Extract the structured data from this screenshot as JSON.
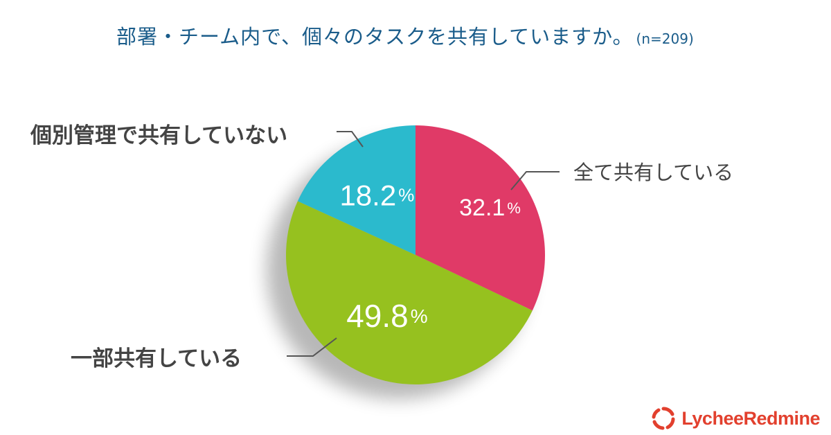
{
  "title": "部署・チーム内で、個々のタスクを共有していますか。",
  "sample_size": "(n=209)",
  "brand": {
    "name": "LycheeRedmine",
    "color": "#e2402e",
    "icon": "lychee-logo-icon"
  },
  "chart_data": {
    "type": "pie",
    "title": "部署・チーム内で、個々のタスクを共有していますか。",
    "start_angle_deg": 0,
    "direction": "clockwise",
    "slices": [
      {
        "label": "全て共有している",
        "value": 32.1,
        "display": "32.1",
        "unit": "%",
        "color": "#e03a67"
      },
      {
        "label": "一部共有している",
        "value": 49.8,
        "display": "49.8",
        "unit": "%",
        "color": "#96c11f"
      },
      {
        "label": "個別管理で共有していない",
        "value": 18.2,
        "display": "18.2",
        "unit": "%",
        "color": "#2bbacd"
      }
    ]
  }
}
